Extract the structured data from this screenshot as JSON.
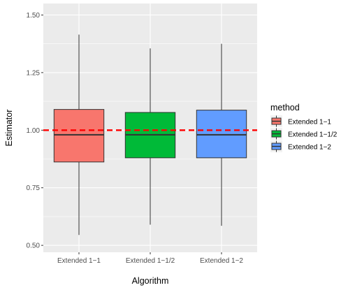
{
  "chart_data": {
    "type": "boxplot",
    "title": "",
    "xlabel": "Algorithm",
    "ylabel": "Estimator",
    "ylim": [
      0.47,
      1.55
    ],
    "yticks": [
      "0.50",
      "0.75",
      "1.00",
      "1.25",
      "1.50"
    ],
    "ytick_values": [
      0.5,
      0.75,
      1.0,
      1.25,
      1.5
    ],
    "categories": [
      "Extended 1−1",
      "Extended 1−1/2",
      "Extended 1−2"
    ],
    "series": [
      {
        "name": "Extended 1−1",
        "color": "#F8766D",
        "whisker_low": 0.545,
        "q1": 0.862,
        "median": 0.98,
        "q3": 1.09,
        "whisker_high": 1.415
      },
      {
        "name": "Extended 1−1/2",
        "color": "#00BA38",
        "whisker_low": 0.59,
        "q1": 0.88,
        "median": 0.98,
        "q3": 1.077,
        "whisker_high": 1.355
      },
      {
        "name": "Extended 1−2",
        "color": "#619CFF",
        "whisker_low": 0.585,
        "q1": 0.88,
        "median": 0.98,
        "q3": 1.087,
        "whisker_high": 1.375
      }
    ],
    "reference_line": {
      "y": 1.0,
      "color": "#FF0000",
      "style": "dashed"
    },
    "grid": true,
    "legend": {
      "title": "method",
      "placement": "right"
    },
    "panel_background": "#EBEBEB"
  }
}
